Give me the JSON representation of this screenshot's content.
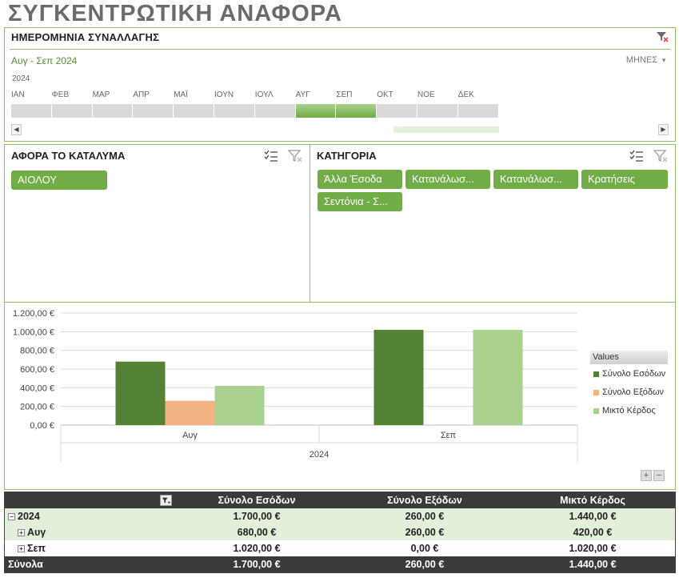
{
  "title": "ΣΥΓΚΕΝΤΡΩΤΙΚΗ ΑΝΑΦΟΡΑ",
  "timeline": {
    "header": "ΗΜΕΡΟΜΗΝΙΑ ΣΥΝΑΛΛΑΓΗΣ",
    "range": "Αυγ - Σεπ 2024",
    "level": "ΜΗΝΕΣ",
    "year": "2024",
    "months": [
      "ΙΑΝ",
      "ΦΕΒ",
      "ΜΑΡ",
      "ΑΠΡ",
      "ΜΑΪ",
      "ΙΟΥΝ",
      "ΙΟΥΛ",
      "ΑΥΓ",
      "ΣΕΠ",
      "ΟΚΤ",
      "ΝΟΕ",
      "ΔΕΚ"
    ],
    "selected_months": [
      7,
      8
    ]
  },
  "slicer_property": {
    "header": "ΑΦΟΡΑ ΤΟ ΚΑΤΑΛΥΜΑ",
    "items": [
      "ΑΙΟΛΟΥ"
    ]
  },
  "slicer_category": {
    "header": "ΚΑΤΗΓΟΡΙΑ",
    "items": [
      "Άλλα Έσοδα",
      "Κατανάλωσ...",
      "Κατανάλωσ...",
      "Κρατήσεις",
      "Σεντόνια - Σ..."
    ]
  },
  "chart_data": {
    "type": "bar",
    "categories": [
      "Αυγ",
      "Σεπ"
    ],
    "group_label": "2024",
    "series": [
      {
        "name": "Σύνολο Εσόδων",
        "values": [
          680,
          1020
        ],
        "color": "#548235"
      },
      {
        "name": "Σύνολο Εξόδων",
        "values": [
          260,
          0
        ],
        "color": "#f4b183"
      },
      {
        "name": "Μικτό Κέρδος",
        "values": [
          420,
          1020
        ],
        "color": "#a9d08e"
      }
    ],
    "ylim": [
      0,
      1200
    ],
    "yticks": [
      "0,00 €",
      "200,00 €",
      "400,00 €",
      "600,00 €",
      "800,00 €",
      "1.000,00 €",
      "1.200,00 €"
    ],
    "legend_title": "Values",
    "legend_position": "right",
    "grid": true
  },
  "pivot": {
    "headers": [
      "",
      "Σύνολο Εσόδων",
      "Σύνολο Εξόδων",
      "Μικτό Κέρδος"
    ],
    "year_row": {
      "label": "2024",
      "values": [
        "1.700,00 €",
        "260,00 €",
        "1.440,00 €"
      ]
    },
    "rows": [
      {
        "label": "Αυγ",
        "values": [
          "680,00 €",
          "260,00 €",
          "420,00 €"
        ]
      },
      {
        "label": "Σεπ",
        "values": [
          "1.020,00 €",
          "0,00 €",
          "1.020,00 €"
        ]
      }
    ],
    "total_row": {
      "label": "Σύνολα",
      "values": [
        "1.700,00 €",
        "260,00 €",
        "1.440,00 €"
      ]
    }
  },
  "colors": {
    "accent": "#70ad47",
    "header_dark": "#3a3a3a",
    "row_light": "#e2efda"
  }
}
